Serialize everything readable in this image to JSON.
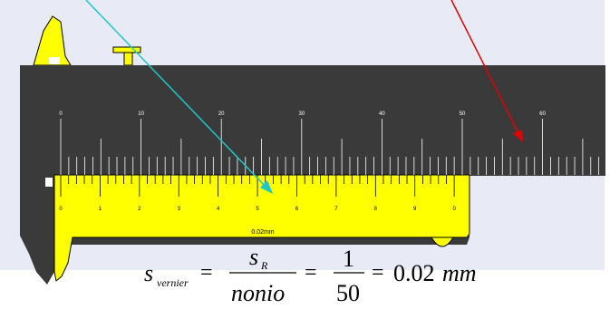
{
  "colors": {
    "background_panel": "#e8eaf6",
    "caliper_body": "#3a3a3a",
    "vernier": "#ffff00",
    "tick": "#ffffff",
    "arrow_cyan": "#1ec8c8",
    "arrow_red": "#e00000",
    "outline": "#000000"
  },
  "main_scale": {
    "labels": [
      "0",
      "10",
      "20",
      "30",
      "40",
      "50",
      "60"
    ]
  },
  "vernier_scale": {
    "labels": [
      "0",
      "1",
      "2",
      "3",
      "4",
      "5",
      "6",
      "7",
      "8",
      "9",
      "0"
    ],
    "resolution_label": "0.02mm"
  },
  "formula": {
    "s_vernier_base": "s",
    "s_vernier_sub": "vernier",
    "equals": "=",
    "num1_base": "s",
    "num1_sub": "R",
    "den1": "nonio",
    "num2": "1",
    "den2": "50",
    "result": "0.02",
    "result_unit": "mm"
  }
}
